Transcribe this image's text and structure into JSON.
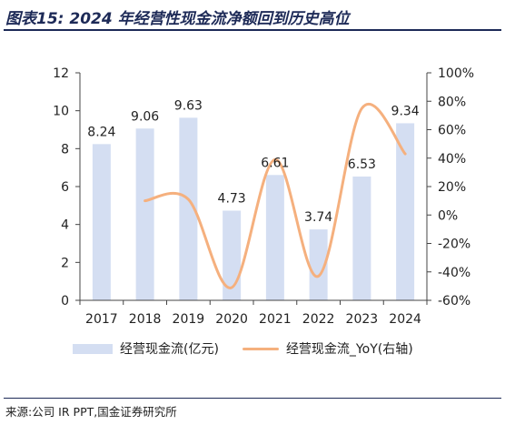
{
  "figure_title": "图表15:  2024 年经营性现金流净额回到历史高位",
  "source_note": "来源:公司 IR PPT,国金证券研究所",
  "chart_data": {
    "type": "bar",
    "title": "",
    "categories": [
      "2017",
      "2018",
      "2019",
      "2020",
      "2021",
      "2022",
      "2023",
      "2024"
    ],
    "series": [
      {
        "name": "经营现金流(亿元)",
        "type": "bar",
        "axis": "left",
        "values": [
          8.24,
          9.06,
          9.63,
          4.73,
          6.61,
          3.74,
          6.53,
          9.34
        ],
        "color": "#d4def2"
      },
      {
        "name": "经营现金流_YoY(右轴)",
        "type": "line",
        "axis": "right",
        "smooth": true,
        "values": [
          null,
          10,
          11,
          -51,
          39,
          -43,
          75,
          43
        ],
        "color": "#f5b07e"
      }
    ],
    "y_left": {
      "min": 0,
      "max": 12,
      "ticks": [
        0,
        2,
        4,
        6,
        8,
        10,
        12
      ]
    },
    "y_right": {
      "min": -60,
      "max": 100,
      "ticks": [
        "-60%",
        "-40%",
        "-20%",
        "0%",
        "20%",
        "40%",
        "60%",
        "80%",
        "100%"
      ]
    },
    "data_labels": [
      "8.24",
      "9.06",
      "9.63",
      "4.73",
      "6.61",
      "3.74",
      "6.53",
      "9.34"
    ],
    "grid": false,
    "legend_position": "bottom"
  }
}
